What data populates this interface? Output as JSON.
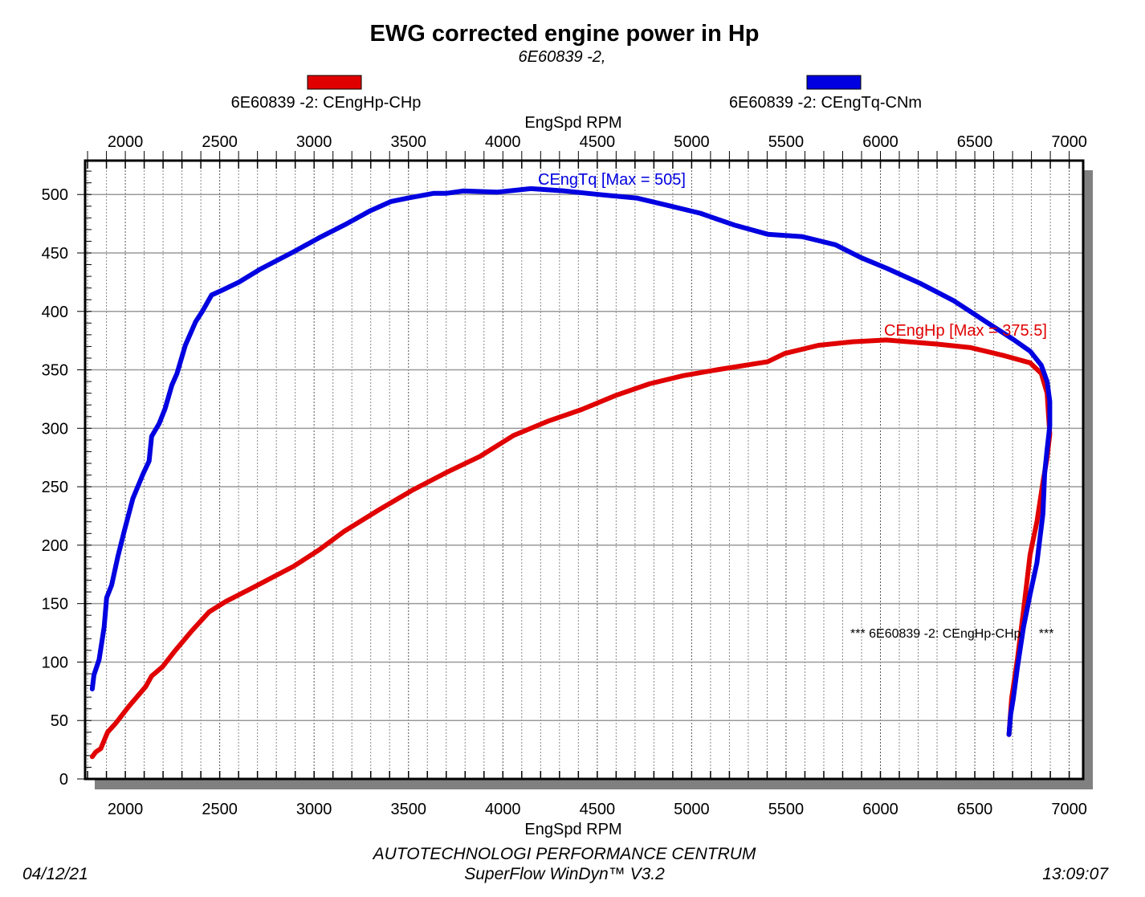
{
  "chart_data": {
    "type": "line",
    "title": "EWG corrected engine power in Hp",
    "subtitle": "6E60839 -2,",
    "xlabel": "EngSpd RPM",
    "ylabel": "",
    "xlim": [
      1787,
      7074
    ],
    "ylim": [
      0,
      529
    ],
    "xticks": [
      2000,
      2500,
      3000,
      3500,
      4000,
      4500,
      5000,
      5500,
      6000,
      6500,
      7000
    ],
    "yticks": [
      0,
      50,
      100,
      150,
      200,
      250,
      300,
      350,
      400,
      450,
      500
    ],
    "grid": true,
    "legend": [
      {
        "label": "6E60839 -2: CEngHp-CHp",
        "color": "#e00000"
      },
      {
        "label": "6E60839 -2: CEngTq-CNm",
        "color": "#0000e0"
      }
    ],
    "series": [
      {
        "name": "CEngHp",
        "color": "#e00000",
        "annotation": "CEngHp [Max = 375.5]",
        "points": [
          [
            1825,
            19
          ],
          [
            1843,
            23
          ],
          [
            1870,
            26
          ],
          [
            1906,
            40
          ],
          [
            1951,
            48
          ],
          [
            2018,
            62
          ],
          [
            2108,
            79
          ],
          [
            2139,
            88
          ],
          [
            2197,
            96
          ],
          [
            2265,
            110
          ],
          [
            2354,
            127
          ],
          [
            2444,
            143
          ],
          [
            2534,
            152
          ],
          [
            2668,
            163
          ],
          [
            2892,
            182
          ],
          [
            3027,
            196
          ],
          [
            3161,
            212
          ],
          [
            3341,
            230
          ],
          [
            3520,
            247
          ],
          [
            3699,
            262
          ],
          [
            3879,
            276
          ],
          [
            4058,
            294
          ],
          [
            4238,
            306
          ],
          [
            4417,
            316
          ],
          [
            4596,
            328
          ],
          [
            4776,
            338
          ],
          [
            4955,
            345
          ],
          [
            5134,
            350
          ],
          [
            5403,
            357
          ],
          [
            5493,
            364
          ],
          [
            5672,
            371
          ],
          [
            5852,
            374
          ],
          [
            6031,
            375.5
          ],
          [
            6300,
            372
          ],
          [
            6479,
            369
          ],
          [
            6659,
            362
          ],
          [
            6793,
            356
          ],
          [
            6852,
            347
          ],
          [
            6883,
            330
          ],
          [
            6897,
            295
          ],
          [
            6883,
            275
          ],
          [
            6861,
            254
          ],
          [
            6829,
            220
          ],
          [
            6793,
            192
          ],
          [
            6758,
            144
          ],
          [
            6726,
            103
          ],
          [
            6695,
            69
          ],
          [
            6681,
            38
          ]
        ]
      },
      {
        "name": "CEngTq",
        "color": "#0000e0",
        "annotation": "CEngTq [Max = 505]",
        "points": [
          [
            1825,
            77
          ],
          [
            1834,
            89
          ],
          [
            1861,
            102
          ],
          [
            1888,
            130
          ],
          [
            1901,
            155
          ],
          [
            1928,
            166
          ],
          [
            1960,
            190
          ],
          [
            1996,
            213
          ],
          [
            2040,
            240
          ],
          [
            2094,
            261
          ],
          [
            2126,
            272
          ],
          [
            2139,
            293
          ],
          [
            2179,
            304
          ],
          [
            2211,
            317
          ],
          [
            2247,
            337
          ],
          [
            2274,
            347
          ],
          [
            2318,
            371
          ],
          [
            2372,
            391
          ],
          [
            2408,
            400
          ],
          [
            2457,
            414
          ],
          [
            2511,
            418
          ],
          [
            2601,
            425
          ],
          [
            2713,
            436
          ],
          [
            2892,
            451
          ],
          [
            3027,
            463
          ],
          [
            3161,
            474
          ],
          [
            3296,
            486
          ],
          [
            3408,
            494
          ],
          [
            3498,
            497
          ],
          [
            3632,
            501
          ],
          [
            3699,
            501
          ],
          [
            3789,
            503
          ],
          [
            3968,
            502
          ],
          [
            4148,
            505
          ],
          [
            4327,
            503
          ],
          [
            4507,
            500
          ],
          [
            4708,
            497
          ],
          [
            4865,
            491
          ],
          [
            5045,
            484
          ],
          [
            5224,
            474
          ],
          [
            5403,
            466
          ],
          [
            5583,
            464
          ],
          [
            5762,
            457
          ],
          [
            5897,
            446
          ],
          [
            6031,
            437
          ],
          [
            6210,
            424
          ],
          [
            6390,
            409
          ],
          [
            6569,
            390
          ],
          [
            6704,
            376
          ],
          [
            6793,
            366
          ],
          [
            6852,
            354
          ],
          [
            6883,
            340
          ],
          [
            6897,
            323
          ],
          [
            6897,
            302
          ],
          [
            6883,
            282
          ],
          [
            6870,
            261
          ],
          [
            6861,
            227
          ],
          [
            6829,
            185
          ],
          [
            6793,
            158
          ],
          [
            6758,
            130
          ],
          [
            6726,
            96
          ],
          [
            6704,
            69
          ],
          [
            6690,
            55
          ],
          [
            6681,
            38
          ]
        ]
      }
    ],
    "note": "*** 6E60839 -2: CEngHp-CHp     ***"
  },
  "footer": {
    "date": "04/12/21",
    "company": "AUTOTECHNOLOGI PERFORMANCE CENTRUM",
    "software": "SuperFlow WinDyn™  V3.2",
    "time": "13:09:07"
  }
}
